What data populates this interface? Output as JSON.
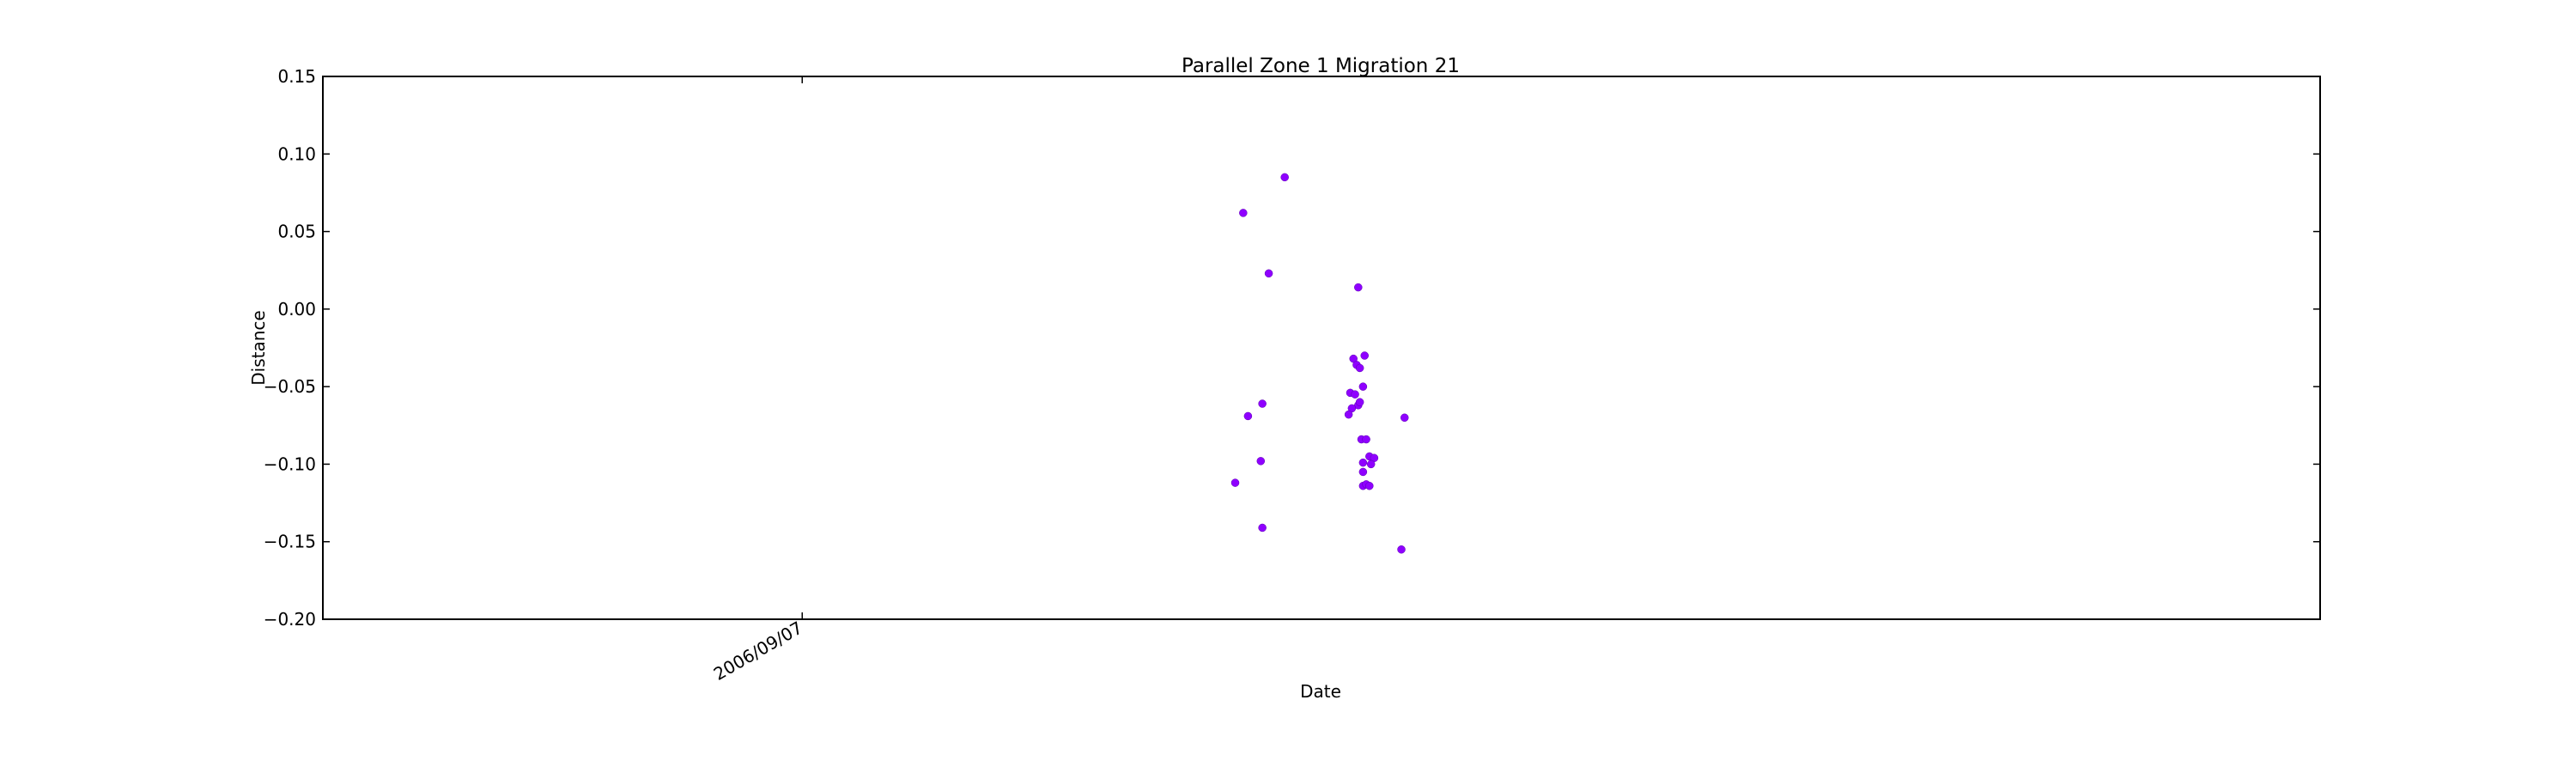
{
  "chart_data": {
    "type": "scatter",
    "title": "Parallel Zone 1 Migration 21",
    "xlabel": "Date",
    "ylabel": "Distance",
    "ylim": [
      -0.2,
      0.15
    ],
    "yticks": [
      "0.15",
      "0.10",
      "0.05",
      "0.00",
      "−0.05",
      "−0.10",
      "−0.15",
      "−0.20"
    ],
    "yticks_values": [
      0.15,
      0.1,
      0.05,
      0.0,
      -0.05,
      -0.1,
      -0.15,
      -0.2
    ],
    "xticks": [
      "2006/09/07"
    ],
    "xticks_values": [
      "2006/09/07"
    ],
    "x_unit": "days",
    "xlim_days_relative_to_tick": [
      -30,
      95
    ],
    "marker_color": "#8f00ff",
    "grid": false,
    "points": [
      {
        "x_days": 27.6,
        "y": 0.062
      },
      {
        "x_days": 30.2,
        "y": 0.085
      },
      {
        "x_days": 29.2,
        "y": 0.023
      },
      {
        "x_days": 34.8,
        "y": 0.014
      },
      {
        "x_days": 34.5,
        "y": -0.032
      },
      {
        "x_days": 34.7,
        "y": -0.036
      },
      {
        "x_days": 34.9,
        "y": -0.038
      },
      {
        "x_days": 35.2,
        "y": -0.03
      },
      {
        "x_days": 35.1,
        "y": -0.05
      },
      {
        "x_days": 34.3,
        "y": -0.054
      },
      {
        "x_days": 34.6,
        "y": -0.055
      },
      {
        "x_days": 34.8,
        "y": -0.062
      },
      {
        "x_days": 34.4,
        "y": -0.064
      },
      {
        "x_days": 34.9,
        "y": -0.06
      },
      {
        "x_days": 34.2,
        "y": -0.068
      },
      {
        "x_days": 28.8,
        "y": -0.061
      },
      {
        "x_days": 27.9,
        "y": -0.069
      },
      {
        "x_days": 37.7,
        "y": -0.07
      },
      {
        "x_days": 35.0,
        "y": -0.084
      },
      {
        "x_days": 35.3,
        "y": -0.084
      },
      {
        "x_days": 35.5,
        "y": -0.095
      },
      {
        "x_days": 35.8,
        "y": -0.096
      },
      {
        "x_days": 35.1,
        "y": -0.099
      },
      {
        "x_days": 35.6,
        "y": -0.1
      },
      {
        "x_days": 28.7,
        "y": -0.098
      },
      {
        "x_days": 35.1,
        "y": -0.105
      },
      {
        "x_days": 27.1,
        "y": -0.112
      },
      {
        "x_days": 35.1,
        "y": -0.114
      },
      {
        "x_days": 35.3,
        "y": -0.113
      },
      {
        "x_days": 35.5,
        "y": -0.114
      },
      {
        "x_days": 28.8,
        "y": -0.141
      },
      {
        "x_days": 37.5,
        "y": -0.155
      }
    ]
  }
}
